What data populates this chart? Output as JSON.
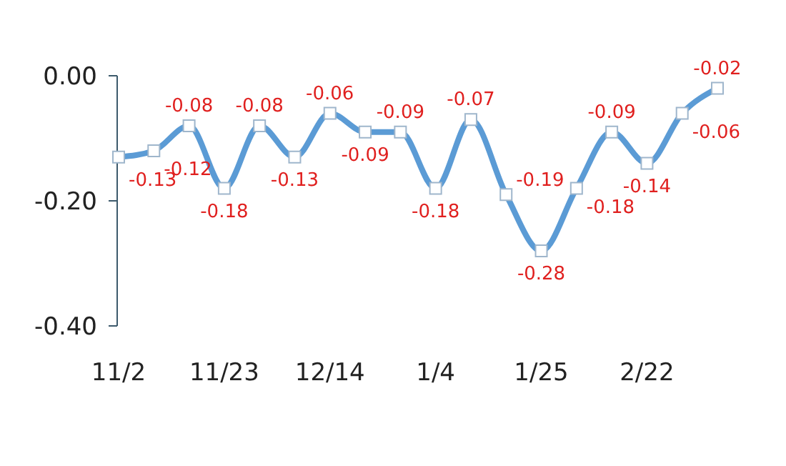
{
  "chart_data": {
    "type": "line",
    "categories": [
      "11/2",
      null,
      null,
      "11/23",
      null,
      null,
      "12/14",
      null,
      null,
      "1/4",
      null,
      null,
      "1/25",
      null,
      null,
      "2/22",
      null,
      null
    ],
    "series": [
      {
        "color": "#5b9bd5",
        "values": [
          -0.13,
          -0.12,
          -0.08,
          -0.18,
          -0.08,
          -0.13,
          -0.06,
          -0.09,
          -0.09,
          -0.18,
          -0.07,
          -0.19,
          -0.28,
          -0.18,
          -0.09,
          -0.14,
          -0.06,
          -0.02
        ]
      }
    ],
    "ylim": [
      -0.4,
      0
    ],
    "yticks": [
      {
        "value": 0,
        "label": "0.00"
      },
      {
        "value": -0.2,
        "label": "-0.20"
      },
      {
        "value": -0.4,
        "label": "-0.40"
      }
    ],
    "data_labels": true,
    "marker": "square",
    "line_style": "solid",
    "grid": false,
    "legend": false
  }
}
